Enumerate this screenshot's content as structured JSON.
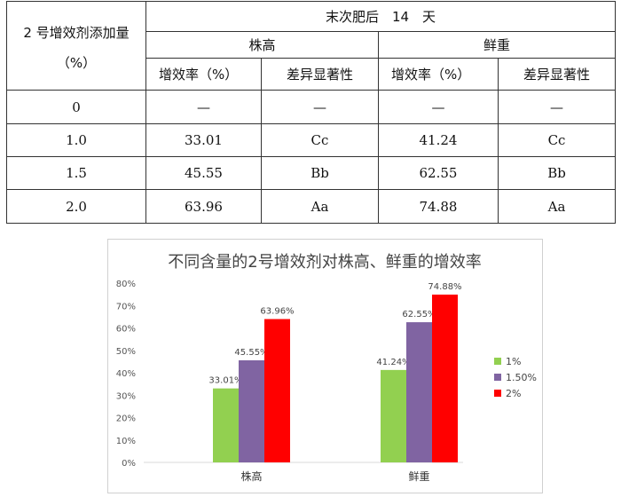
{
  "table": {
    "header_left_line1": "2 号增效剂添加量",
    "header_left_line2": "（%）",
    "header_top": "末次肥后　14　天",
    "group_height": "株高",
    "group_weight": "鲜重",
    "sub_rate_1": "增效率（%）",
    "sub_sig_1": "差异显著性",
    "sub_rate_2": "增效率（%）",
    "sub_sig_2": "差异显著性",
    "rows": [
      {
        "dose": "0",
        "h_rate": "—",
        "h_sig": "—",
        "w_rate": "—",
        "w_sig": "—"
      },
      {
        "dose": "1.0",
        "h_rate": "33.01",
        "h_sig": "Cc",
        "w_rate": "41.24",
        "w_sig": "Cc"
      },
      {
        "dose": "1.5",
        "h_rate": "45.55",
        "h_sig": "Bb",
        "w_rate": "62.55",
        "w_sig": "Bb"
      },
      {
        "dose": "2.0",
        "h_rate": "63.96",
        "h_sig": "Aa",
        "w_rate": "74.88",
        "w_sig": "Aa"
      }
    ]
  },
  "chart_data": {
    "type": "bar",
    "title": "不同含量的2号增效剂对株高、鲜重的增效率",
    "categories": [
      "株高",
      "鲜重"
    ],
    "series": [
      {
        "name": "1%",
        "color": "#92d050",
        "values": [
          33.01,
          41.24
        ],
        "labels": [
          "33.01%",
          "41.24%"
        ]
      },
      {
        "name": "1.50%",
        "color": "#8064a2",
        "values": [
          45.55,
          62.55
        ],
        "labels": [
          "45.55%",
          "62.55%"
        ]
      },
      {
        "name": "2%",
        "color": "#ff0000",
        "values": [
          63.96,
          74.88
        ],
        "labels": [
          "63.96%",
          "74.88%"
        ]
      }
    ],
    "ylim": [
      0,
      80
    ],
    "yticks": [
      "0%",
      "10%",
      "20%",
      "30%",
      "40%",
      "50%",
      "60%",
      "70%",
      "80%"
    ],
    "grid": false,
    "legend": "right"
  }
}
